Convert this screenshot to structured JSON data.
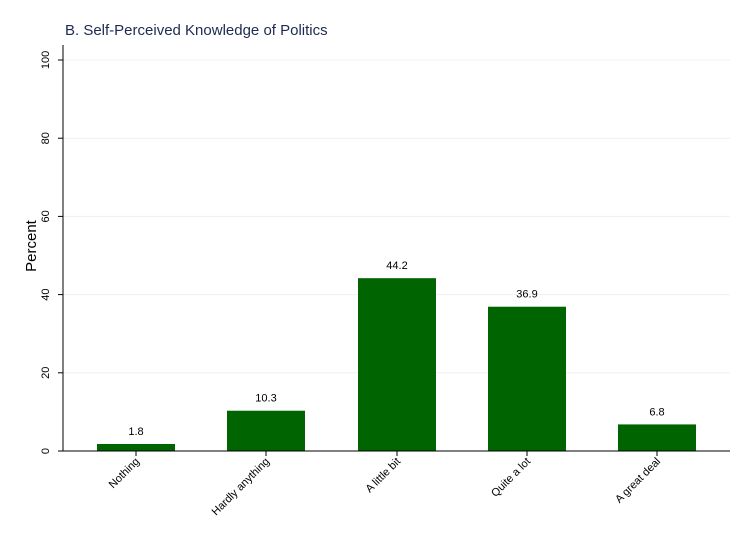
{
  "chart_data": {
    "type": "bar",
    "title": "B. Self-Perceived Knowledge of Politics",
    "xlabel": "",
    "ylabel": "Percent",
    "categories": [
      "Nothing",
      "Hardly anything",
      "A little bit",
      "Quite a lot",
      "A great deal"
    ],
    "values": [
      1.8,
      10.3,
      44.2,
      36.9,
      6.8
    ],
    "value_labels": [
      "1.8",
      "10.3",
      "44.2",
      "36.9",
      "6.8"
    ],
    "ylim": [
      0,
      100
    ],
    "yticks": [
      0,
      20,
      40,
      60,
      80,
      100
    ],
    "grid": true,
    "bar_color": "#006400",
    "grid_color": "#eaf2f3"
  }
}
